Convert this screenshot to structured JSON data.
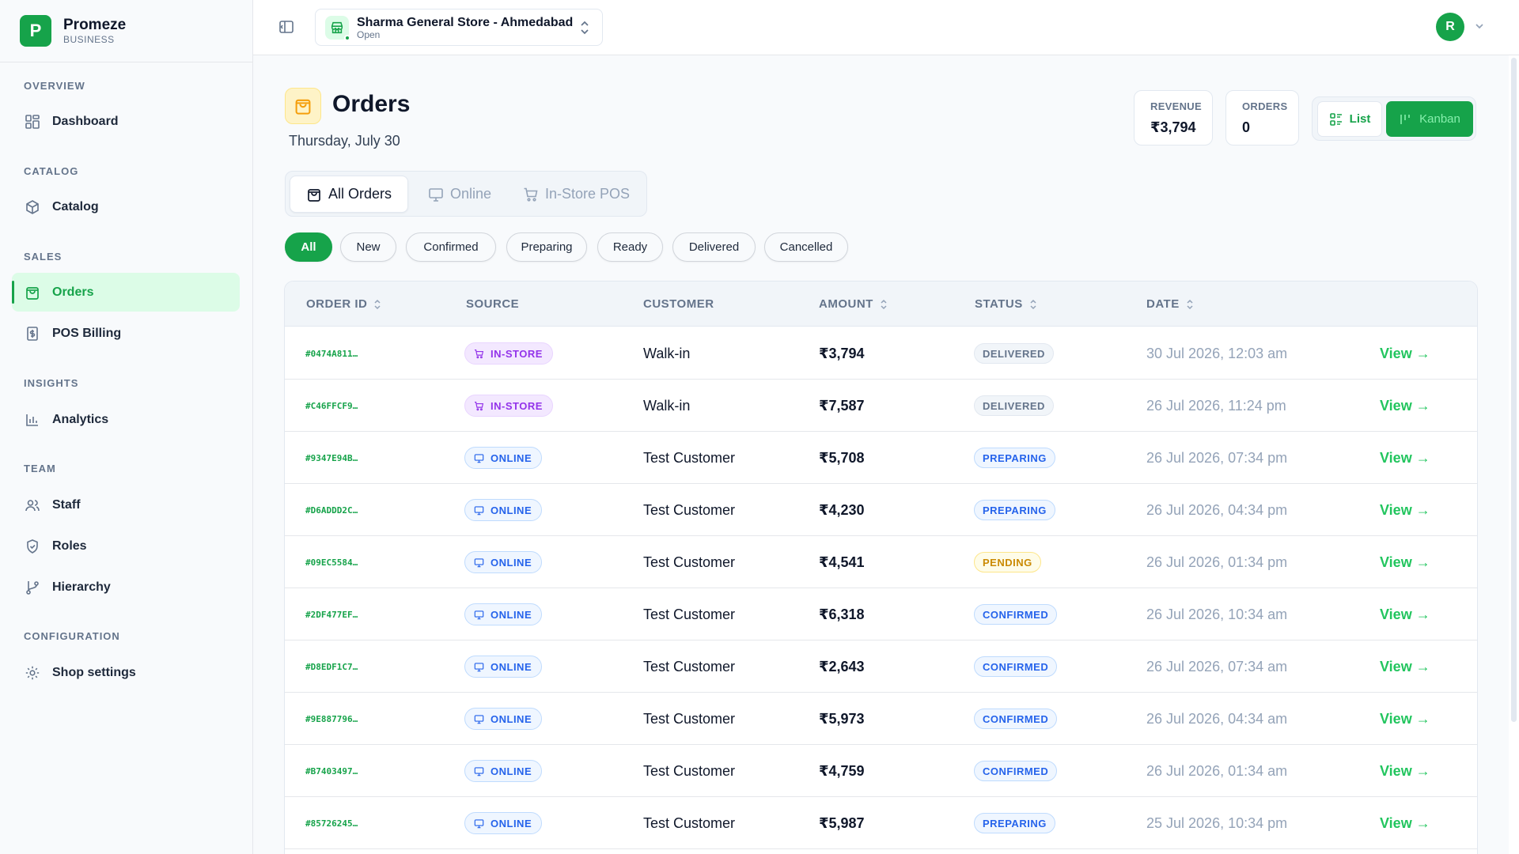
{
  "brand": {
    "initial": "P",
    "name": "Promeze",
    "sub": "BUSINESS"
  },
  "sidebar": {
    "sections": [
      {
        "title": "OVERVIEW",
        "items": [
          {
            "label": "Dashboard",
            "icon": "grid-icon"
          }
        ]
      },
      {
        "title": "CATALOG",
        "items": [
          {
            "label": "Catalog",
            "icon": "box-icon"
          }
        ]
      },
      {
        "title": "SALES",
        "items": [
          {
            "label": "Orders",
            "icon": "shopping-bag-icon",
            "active": true
          },
          {
            "label": "POS Billing",
            "icon": "receipt-icon"
          }
        ]
      },
      {
        "title": "INSIGHTS",
        "items": [
          {
            "label": "Analytics",
            "icon": "bar-chart-icon"
          }
        ]
      },
      {
        "title": "TEAM",
        "items": [
          {
            "label": "Staff",
            "icon": "users-icon"
          },
          {
            "label": "Roles",
            "icon": "shield-icon"
          },
          {
            "label": "Hierarchy",
            "icon": "git-branch-icon"
          }
        ]
      },
      {
        "title": "CONFIGURATION",
        "items": [
          {
            "label": "Shop settings",
            "icon": "gear-icon"
          }
        ]
      }
    ]
  },
  "topbar": {
    "store_name": "Sharma General Store - Ahmedabad",
    "store_status": "Open",
    "avatar_initial": "R"
  },
  "header": {
    "title": "Orders",
    "date": "Thursday, July 30",
    "stats": {
      "revenue_label": "REVENUE",
      "revenue_value": "₹3,794",
      "orders_label": "ORDERS",
      "orders_value": "0"
    },
    "view_toggle": {
      "list_label": "List",
      "kanban_label": "Kanban"
    }
  },
  "tabs": [
    {
      "label": "All Orders",
      "icon": "shopping-bag-icon",
      "active": true
    },
    {
      "label": "Online",
      "icon": "monitor-icon"
    },
    {
      "label": "In-Store POS",
      "icon": "cart-icon"
    }
  ],
  "filters": [
    "All",
    "New",
    "Confirmed",
    "Preparing",
    "Ready",
    "Delivered",
    "Cancelled"
  ],
  "table": {
    "columns": [
      "ORDER ID",
      "SOURCE",
      "CUSTOMER",
      "AMOUNT",
      "STATUS",
      "DATE"
    ],
    "view_label": "View →",
    "rows": [
      {
        "id": "#0474A811…",
        "source": "IN-STORE",
        "customer": "Walk-in",
        "amount": "₹3,794",
        "status": "DELIVERED",
        "date": "30 Jul 2026, 12:03 am"
      },
      {
        "id": "#C46FFCF9…",
        "source": "IN-STORE",
        "customer": "Walk-in",
        "amount": "₹7,587",
        "status": "DELIVERED",
        "date": "26 Jul 2026, 11:24 pm"
      },
      {
        "id": "#9347E94B…",
        "source": "ONLINE",
        "customer": "Test Customer",
        "amount": "₹5,708",
        "status": "PREPARING",
        "date": "26 Jul 2026, 07:34 pm"
      },
      {
        "id": "#D6ADDD2C…",
        "source": "ONLINE",
        "customer": "Test Customer",
        "amount": "₹4,230",
        "status": "PREPARING",
        "date": "26 Jul 2026, 04:34 pm"
      },
      {
        "id": "#09EC5584…",
        "source": "ONLINE",
        "customer": "Test Customer",
        "amount": "₹4,541",
        "status": "PENDING",
        "date": "26 Jul 2026, 01:34 pm"
      },
      {
        "id": "#2DF477EF…",
        "source": "ONLINE",
        "customer": "Test Customer",
        "amount": "₹6,318",
        "status": "CONFIRMED",
        "date": "26 Jul 2026, 10:34 am"
      },
      {
        "id": "#D8EDF1C7…",
        "source": "ONLINE",
        "customer": "Test Customer",
        "amount": "₹2,643",
        "status": "CONFIRMED",
        "date": "26 Jul 2026, 07:34 am"
      },
      {
        "id": "#9E887796…",
        "source": "ONLINE",
        "customer": "Test Customer",
        "amount": "₹5,973",
        "status": "CONFIRMED",
        "date": "26 Jul 2026, 04:34 am"
      },
      {
        "id": "#B7403497…",
        "source": "ONLINE",
        "customer": "Test Customer",
        "amount": "₹4,759",
        "status": "CONFIRMED",
        "date": "26 Jul 2026, 01:34 am"
      },
      {
        "id": "#85726245…",
        "source": "ONLINE",
        "customer": "Test Customer",
        "amount": "₹5,987",
        "status": "PREPARING",
        "date": "25 Jul 2026, 10:34 pm"
      }
    ]
  },
  "colors": {
    "accent": "#16a34a",
    "accent_light": "#dcfce7",
    "in_store": "#9333ea",
    "online": "#2563eb",
    "pending": "#ca8a04"
  }
}
